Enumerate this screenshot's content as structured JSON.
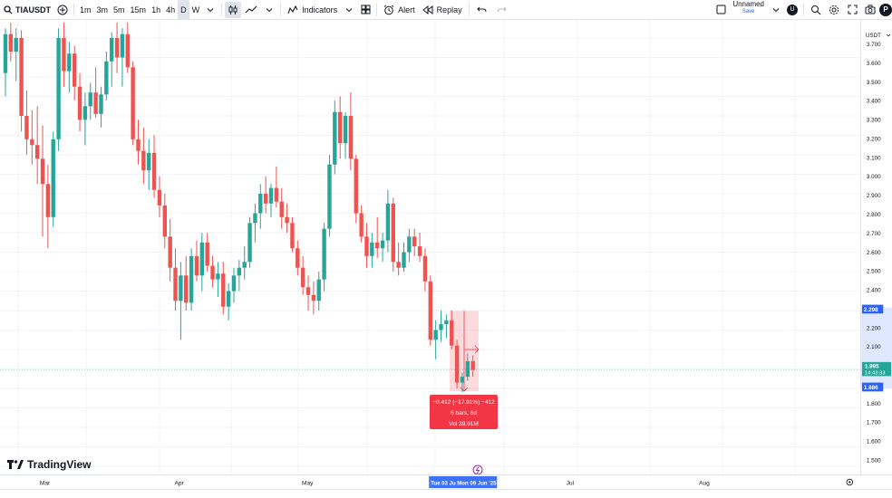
{
  "toolbar": {
    "symbol": "TIAUSDT",
    "timeframes": [
      "1m",
      "3m",
      "5m",
      "15m",
      "1h",
      "4h",
      "D",
      "W"
    ],
    "active_timeframe": "D",
    "indicators_label": "Indicators",
    "alert_label": "Alert",
    "replay_label": "Replay",
    "layout_name": "Unnamed",
    "save_label": "Save",
    "avatar_letter": "U",
    "publish_label": "P"
  },
  "price_axis": {
    "currency": "USDT",
    "ticks": [
      "3.700",
      "3.600",
      "3.500",
      "3.400",
      "3.300",
      "3.200",
      "3.100",
      "3.000",
      "2.900",
      "2.800",
      "2.700",
      "2.600",
      "2.500",
      "2.400",
      "2.300",
      "2.200",
      "2.100",
      "2.000",
      "1.900",
      "1.800",
      "1.700",
      "1.600",
      "1.500"
    ],
    "range_top_label": "2.298",
    "range_bottom_label": "1.886",
    "current_price": "1.995",
    "countdown": "14:43:33"
  },
  "time_axis": {
    "labels": [
      "Mar",
      "Apr",
      "May",
      "Jul",
      "Aug"
    ],
    "range_start": "Tue 03 Ju",
    "range_end": "Mon 09 Jun '25"
  },
  "measure_box": {
    "line1": "−0.412 (−17.91%) −412",
    "line2": "6 bars, 6d",
    "line3": "Vol 39.91M"
  },
  "logo_text": "TradingView",
  "colors": {
    "up": "#26a69a",
    "down": "#ef5350",
    "accent": "#2962ff",
    "measure_bg": "#f23645"
  },
  "chart_data": {
    "type": "candlestick",
    "ylim": [
      1.45,
      3.75
    ],
    "candles": [
      [
        3.52,
        3.75,
        3.4,
        3.72
      ],
      [
        3.72,
        3.78,
        3.58,
        3.63
      ],
      [
        3.63,
        3.75,
        3.48,
        3.7
      ],
      [
        3.7,
        3.74,
        3.22,
        3.3
      ],
      [
        3.3,
        3.43,
        3.1,
        3.18
      ],
      [
        3.18,
        3.33,
        3.05,
        3.15
      ],
      [
        3.15,
        3.35,
        2.95,
        3.08
      ],
      [
        3.08,
        3.25,
        2.68,
        2.95
      ],
      [
        2.95,
        3.05,
        2.62,
        2.78
      ],
      [
        2.78,
        3.22,
        2.73,
        3.18
      ],
      [
        3.18,
        3.75,
        3.12,
        3.7
      ],
      [
        3.7,
        3.78,
        3.45,
        3.53
      ],
      [
        3.53,
        3.68,
        3.42,
        3.62
      ],
      [
        3.62,
        3.66,
        3.38,
        3.45
      ],
      [
        3.45,
        3.52,
        3.22,
        3.28
      ],
      [
        3.28,
        3.42,
        3.15,
        3.35
      ],
      [
        3.35,
        3.47,
        3.28,
        3.42
      ],
      [
        3.42,
        3.55,
        3.29,
        3.31
      ],
      [
        3.31,
        3.45,
        3.24,
        3.41
      ],
      [
        3.41,
        3.63,
        3.38,
        3.58
      ],
      [
        3.58,
        3.73,
        3.45,
        3.7
      ],
      [
        3.7,
        3.78,
        3.52,
        3.6
      ],
      [
        3.6,
        3.75,
        3.45,
        3.72
      ],
      [
        3.72,
        3.78,
        3.52,
        3.55
      ],
      [
        3.55,
        3.58,
        3.15,
        3.18
      ],
      [
        3.18,
        3.28,
        3.05,
        3.12
      ],
      [
        3.12,
        3.24,
        2.95,
        3.02
      ],
      [
        3.02,
        3.18,
        2.92,
        3.11
      ],
      [
        3.11,
        3.2,
        2.88,
        2.92
      ],
      [
        2.92,
        2.99,
        2.78,
        2.84
      ],
      [
        2.84,
        2.9,
        2.62,
        2.68
      ],
      [
        2.68,
        2.77,
        2.45,
        2.52
      ],
      [
        2.52,
        2.62,
        2.3,
        2.35
      ],
      [
        2.35,
        2.55,
        2.15,
        2.48
      ],
      [
        2.48,
        2.58,
        2.3,
        2.34
      ],
      [
        2.34,
        2.62,
        2.3,
        2.58
      ],
      [
        2.58,
        2.66,
        2.45,
        2.48
      ],
      [
        2.48,
        2.7,
        2.4,
        2.65
      ],
      [
        2.65,
        2.7,
        2.5,
        2.53
      ],
      [
        2.53,
        2.58,
        2.42,
        2.46
      ],
      [
        2.46,
        2.55,
        2.37,
        2.49
      ],
      [
        2.49,
        2.55,
        2.28,
        2.32
      ],
      [
        2.32,
        2.44,
        2.25,
        2.4
      ],
      [
        2.4,
        2.52,
        2.34,
        2.48
      ],
      [
        2.48,
        2.56,
        2.4,
        2.52
      ],
      [
        2.52,
        2.63,
        2.46,
        2.55
      ],
      [
        2.55,
        2.78,
        2.52,
        2.75
      ],
      [
        2.75,
        2.85,
        2.65,
        2.8
      ],
      [
        2.8,
        2.95,
        2.72,
        2.9
      ],
      [
        2.9,
        2.99,
        2.8,
        2.85
      ],
      [
        2.85,
        2.95,
        2.78,
        2.93
      ],
      [
        2.93,
        3.04,
        2.83,
        2.86
      ],
      [
        2.86,
        2.93,
        2.72,
        2.78
      ],
      [
        2.78,
        2.85,
        2.7,
        2.75
      ],
      [
        2.75,
        2.78,
        2.6,
        2.62
      ],
      [
        2.62,
        2.66,
        2.48,
        2.52
      ],
      [
        2.52,
        2.58,
        2.38,
        2.42
      ],
      [
        2.42,
        2.48,
        2.3,
        2.38
      ],
      [
        2.38,
        2.45,
        2.28,
        2.35
      ],
      [
        2.35,
        2.5,
        2.3,
        2.46
      ],
      [
        2.46,
        2.75,
        2.4,
        2.72
      ],
      [
        2.72,
        3.1,
        2.68,
        3.05
      ],
      [
        3.05,
        3.38,
        3.0,
        3.32
      ],
      [
        3.32,
        3.4,
        3.08,
        3.16
      ],
      [
        3.16,
        3.32,
        3.08,
        3.3
      ],
      [
        3.3,
        3.42,
        3.02,
        3.08
      ],
      [
        3.08,
        3.1,
        2.75,
        2.8
      ],
      [
        2.8,
        2.84,
        2.65,
        2.68
      ],
      [
        2.68,
        2.75,
        2.52,
        2.58
      ],
      [
        2.58,
        2.7,
        2.52,
        2.65
      ],
      [
        2.65,
        2.78,
        2.57,
        2.62
      ],
      [
        2.62,
        2.7,
        2.55,
        2.66
      ],
      [
        2.66,
        2.92,
        2.6,
        2.85
      ],
      [
        2.85,
        2.88,
        2.5,
        2.55
      ],
      [
        2.55,
        2.65,
        2.48,
        2.52
      ],
      [
        2.52,
        2.65,
        2.5,
        2.6
      ],
      [
        2.6,
        2.72,
        2.55,
        2.68
      ],
      [
        2.68,
        2.72,
        2.58,
        2.63
      ],
      [
        2.63,
        2.7,
        2.55,
        2.58
      ],
      [
        2.58,
        2.62,
        2.4,
        2.45
      ],
      [
        2.45,
        2.48,
        2.12,
        2.15
      ],
      [
        2.15,
        2.25,
        2.05,
        2.2
      ],
      [
        2.2,
        2.3,
        2.14,
        2.23
      ],
      [
        2.23,
        2.28,
        2.16,
        2.25
      ],
      [
        2.25,
        2.3,
        2.1,
        2.12
      ],
      [
        2.12,
        2.15,
        1.9,
        1.93
      ],
      [
        1.93,
        1.98,
        1.88,
        1.96
      ],
      [
        1.96,
        2.08,
        1.94,
        2.04
      ],
      [
        2.04,
        2.07,
        1.96,
        1.995
      ]
    ]
  }
}
